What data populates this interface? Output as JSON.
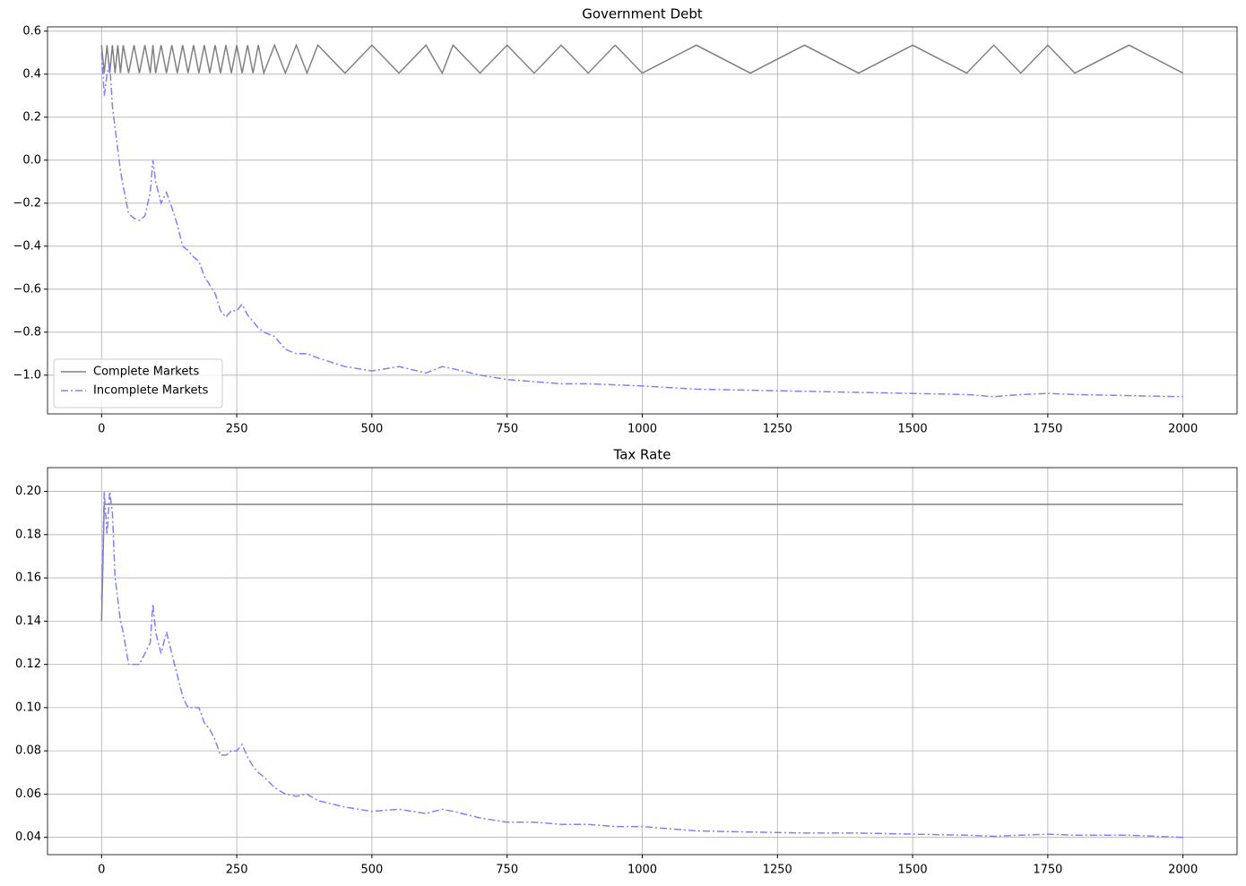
{
  "chart_data": [
    {
      "type": "line",
      "title": "Government Debt",
      "x": [
        0,
        5,
        10,
        15,
        20,
        25,
        30,
        35,
        40,
        50,
        60,
        70,
        80,
        90,
        95,
        100,
        110,
        120,
        130,
        140,
        150,
        160,
        170,
        180,
        190,
        200,
        210,
        220,
        230,
        240,
        250,
        260,
        270,
        280,
        290,
        300,
        320,
        340,
        360,
        380,
        400,
        450,
        500,
        550,
        600,
        630,
        650,
        700,
        750,
        800,
        850,
        900,
        950,
        1000,
        1100,
        1200,
        1300,
        1400,
        1500,
        1600,
        1650,
        1700,
        1750,
        1800,
        1900,
        2000
      ],
      "series": [
        {
          "name": "Complete Markets",
          "color": "#808080",
          "linestyle": "solid",
          "values": [
            0.535,
            0.405,
            0.535,
            0.405,
            0.535,
            0.405,
            0.535,
            0.405,
            0.535,
            0.405,
            0.535,
            0.405,
            0.535,
            0.405,
            0.535,
            0.405,
            0.535,
            0.405,
            0.535,
            0.405,
            0.535,
            0.405,
            0.535,
            0.405,
            0.535,
            0.405,
            0.535,
            0.405,
            0.535,
            0.405,
            0.535,
            0.405,
            0.535,
            0.405,
            0.535,
            0.405,
            0.535,
            0.405,
            0.535,
            0.405,
            0.535,
            0.405,
            0.535,
            0.405,
            0.535,
            0.405,
            0.535,
            0.405,
            0.535,
            0.405,
            0.535,
            0.405,
            0.535,
            0.405,
            0.535,
            0.405,
            0.535,
            0.405,
            0.535,
            0.405,
            0.535,
            0.405,
            0.535,
            0.405,
            0.535,
            0.405
          ]
        },
        {
          "name": "Incomplete Markets",
          "color": "#8080ff",
          "linestyle": "dashdot",
          "values": [
            0.5,
            0.3,
            0.4,
            0.45,
            0.25,
            0.15,
            0.05,
            -0.05,
            -0.12,
            -0.25,
            -0.27,
            -0.28,
            -0.26,
            -0.15,
            0.0,
            -0.1,
            -0.2,
            -0.15,
            -0.22,
            -0.3,
            -0.4,
            -0.42,
            -0.45,
            -0.47,
            -0.54,
            -0.58,
            -0.62,
            -0.7,
            -0.73,
            -0.7,
            -0.7,
            -0.67,
            -0.72,
            -0.75,
            -0.78,
            -0.8,
            -0.82,
            -0.88,
            -0.9,
            -0.9,
            -0.92,
            -0.96,
            -0.98,
            -0.96,
            -0.99,
            -0.96,
            -0.97,
            -1.0,
            -1.02,
            -1.03,
            -1.04,
            -1.04,
            -1.045,
            -1.05,
            -1.065,
            -1.07,
            -1.075,
            -1.08,
            -1.085,
            -1.09,
            -1.1,
            -1.09,
            -1.085,
            -1.09,
            -1.095,
            -1.1
          ]
        }
      ],
      "xlim": [
        -100,
        2100
      ],
      "xticks": [
        0,
        250,
        500,
        750,
        1000,
        1250,
        1500,
        1750,
        2000
      ],
      "ylim": [
        -1.18,
        0.62
      ],
      "yticks": [
        {
          "value": -1.0,
          "label": "−1.0"
        },
        {
          "value": -0.8,
          "label": "−0.8"
        },
        {
          "value": -0.6,
          "label": "−0.6"
        },
        {
          "value": -0.4,
          "label": "−0.4"
        },
        {
          "value": -0.2,
          "label": "−0.2"
        },
        {
          "value": 0,
          "label": "0.0"
        },
        0.2,
        0.4,
        0.6
      ],
      "grid": true,
      "legend": "lower left"
    },
    {
      "type": "line",
      "title": "Tax Rate",
      "x": [
        0,
        5,
        10,
        15,
        20,
        25,
        30,
        35,
        40,
        50,
        60,
        70,
        80,
        90,
        95,
        100,
        110,
        120,
        130,
        140,
        150,
        160,
        170,
        180,
        190,
        200,
        210,
        220,
        230,
        240,
        250,
        260,
        270,
        280,
        290,
        300,
        320,
        340,
        360,
        380,
        400,
        450,
        500,
        550,
        600,
        630,
        650,
        700,
        750,
        800,
        850,
        900,
        950,
        1000,
        1100,
        1200,
        1300,
        1400,
        1500,
        1600,
        1650,
        1700,
        1750,
        1800,
        1900,
        2000
      ],
      "series": [
        {
          "name": "Complete Markets",
          "color": "#808080",
          "linestyle": "solid",
          "values": [
            0.14,
            0.194,
            0.194,
            0.194,
            0.194,
            0.194,
            0.194,
            0.194,
            0.194,
            0.194,
            0.194,
            0.194,
            0.194,
            0.194,
            0.194,
            0.194,
            0.194,
            0.194,
            0.194,
            0.194,
            0.194,
            0.194,
            0.194,
            0.194,
            0.194,
            0.194,
            0.194,
            0.194,
            0.194,
            0.194,
            0.194,
            0.194,
            0.194,
            0.194,
            0.194,
            0.194,
            0.194,
            0.194,
            0.194,
            0.194,
            0.194,
            0.194,
            0.194,
            0.194,
            0.194,
            0.194,
            0.194,
            0.194,
            0.194,
            0.194,
            0.194,
            0.194,
            0.194,
            0.194,
            0.194,
            0.194,
            0.194,
            0.194,
            0.194,
            0.194,
            0.194,
            0.194,
            0.194,
            0.194,
            0.194,
            0.194
          ]
        },
        {
          "name": "Incomplete Markets",
          "color": "#8080ff",
          "linestyle": "dashdot",
          "values": [
            0.15,
            0.2,
            0.18,
            0.2,
            0.19,
            0.16,
            0.15,
            0.14,
            0.135,
            0.12,
            0.12,
            0.12,
            0.125,
            0.13,
            0.148,
            0.135,
            0.125,
            0.135,
            0.125,
            0.115,
            0.105,
            0.1,
            0.1,
            0.1,
            0.093,
            0.09,
            0.085,
            0.078,
            0.078,
            0.08,
            0.08,
            0.083,
            0.077,
            0.073,
            0.07,
            0.068,
            0.063,
            0.06,
            0.059,
            0.06,
            0.057,
            0.054,
            0.052,
            0.053,
            0.051,
            0.053,
            0.052,
            0.049,
            0.047,
            0.047,
            0.046,
            0.046,
            0.045,
            0.045,
            0.043,
            0.0425,
            0.042,
            0.042,
            0.0415,
            0.041,
            0.0405,
            0.041,
            0.0415,
            0.041,
            0.041,
            0.04
          ]
        }
      ],
      "xlim": [
        -100,
        2100
      ],
      "xticks": [
        0,
        250,
        500,
        750,
        1000,
        1250,
        1500,
        1750,
        2000
      ],
      "ylim": [
        0.032,
        0.211
      ],
      "yticks": [
        0.04,
        0.06,
        0.08,
        {
          "value": 0.1,
          "label": "0.10"
        },
        0.12,
        0.14,
        0.16,
        0.18,
        {
          "value": 0.2,
          "label": "0.20"
        }
      ],
      "grid": true
    }
  ]
}
